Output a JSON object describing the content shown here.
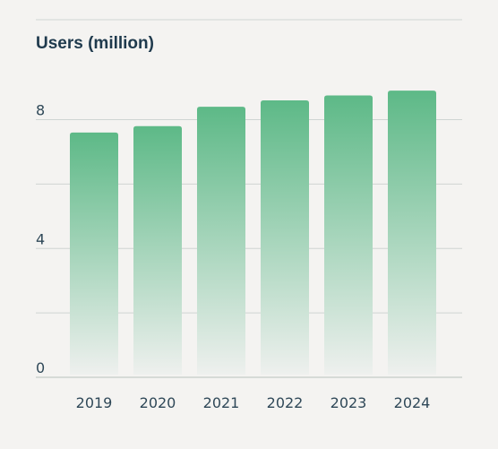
{
  "chart_data": {
    "type": "bar",
    "title": "Users (million)",
    "xlabel": "",
    "ylabel": "",
    "categories": [
      "2019",
      "2020",
      "2021",
      "2022",
      "2023",
      "2024"
    ],
    "values": [
      7.6,
      7.8,
      8.4,
      8.6,
      8.75,
      8.9
    ],
    "ylim": [
      0,
      9.6
    ],
    "yticks": [
      0,
      4,
      8
    ],
    "grid": true,
    "colors": {
      "bar_top": "#5db987",
      "bar_bottom": "#eef0ee",
      "grid": "#cfd4d2",
      "axis": "#b9c0bd",
      "text": "#2f4858",
      "title": "#1f3a4d"
    }
  }
}
